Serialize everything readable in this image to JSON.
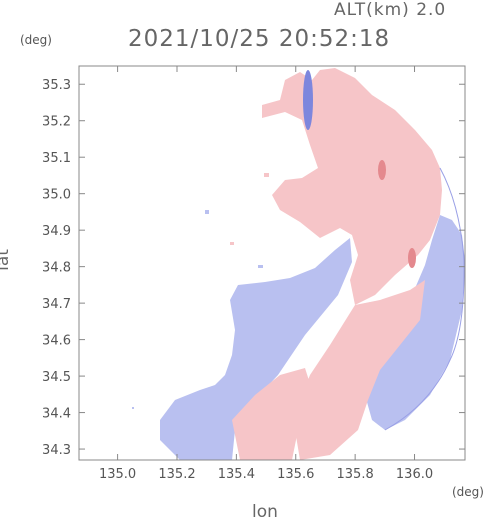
{
  "header": {
    "altitude": "ALT(km) 2.0",
    "timestamp": "2021/10/25 20:52:18"
  },
  "axes": {
    "y_unit": "(deg)",
    "x_unit": "(deg)",
    "y_label": "lat",
    "x_label": "lon",
    "x_range": [
      134.87,
      136.17
    ],
    "y_range": [
      34.27,
      35.35
    ],
    "x_ticks": [
      {
        "value": 135.0,
        "label": "135.0"
      },
      {
        "value": 135.2,
        "label": "135.2"
      },
      {
        "value": 135.4,
        "label": "135.4"
      },
      {
        "value": 135.6,
        "label": "135.6"
      },
      {
        "value": 135.8,
        "label": "135.8"
      },
      {
        "value": 136.0,
        "label": "136.0"
      }
    ],
    "y_ticks": [
      {
        "value": 35.3,
        "label": "35.3"
      },
      {
        "value": 35.2,
        "label": "35.2"
      },
      {
        "value": 35.1,
        "label": "35.1"
      },
      {
        "value": 35.0,
        "label": "35.0"
      },
      {
        "value": 34.9,
        "label": "34.9"
      },
      {
        "value": 34.8,
        "label": "34.8"
      },
      {
        "value": 34.7,
        "label": "34.7"
      },
      {
        "value": 34.6,
        "label": "34.6"
      },
      {
        "value": 34.5,
        "label": "34.5"
      },
      {
        "value": 34.4,
        "label": "34.4"
      },
      {
        "value": 34.3,
        "label": "34.3"
      }
    ]
  },
  "colors": {
    "approaching": "#b9c0f0",
    "receding": "#f6c5c8",
    "strong_approaching": "#7d86dd",
    "strong_receding": "#e4898e",
    "frame": "#888888"
  }
}
